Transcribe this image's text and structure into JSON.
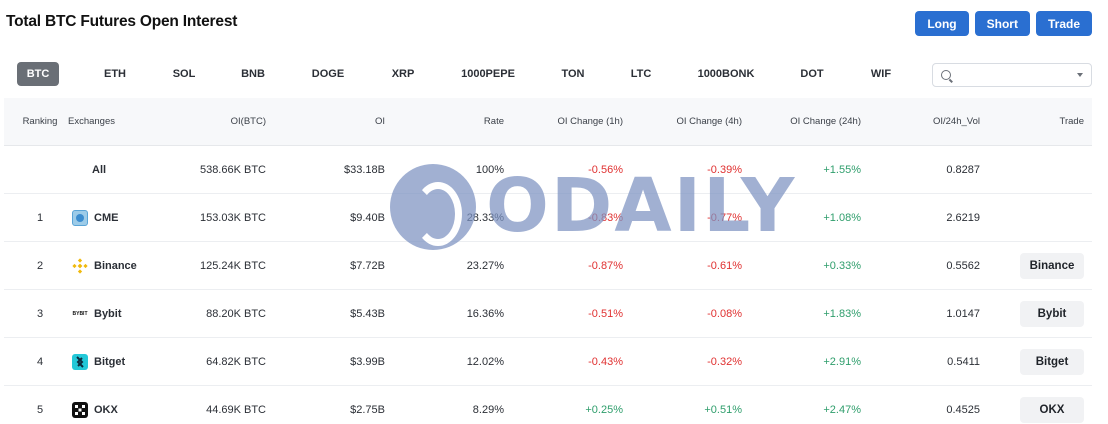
{
  "page": {
    "title": "Total BTC Futures Open Interest"
  },
  "actions": {
    "long_label": "Long",
    "short_label": "Short",
    "trade_label": "Trade"
  },
  "coins": [
    "BTC",
    "ETH",
    "SOL",
    "BNB",
    "DOGE",
    "XRP",
    "1000PEPE",
    "TON",
    "LTC",
    "1000BONK",
    "DOT",
    "WIF"
  ],
  "selected_coin": "BTC",
  "search": {
    "value": "",
    "placeholder": ""
  },
  "table": {
    "headers": {
      "ranking": "Ranking",
      "exchanges": "Exchanges",
      "oi_btc": "OI(BTC)",
      "oi": "OI",
      "rate": "Rate",
      "oi_change_1h": "OI Change (1h)",
      "oi_change_4h": "OI Change (4h)",
      "oi_change_24h": "OI Change (24h)",
      "oi_24h_vol": "OI/24h_Vol",
      "trade": "Trade"
    },
    "rows": [
      {
        "rank": "",
        "exchange": "All",
        "icon": "",
        "oi_btc": "538.66K BTC",
        "oi": "$33.18B",
        "rate": "100%",
        "ch1h": "-0.56%",
        "ch4h": "-0.39%",
        "ch24h": "+1.55%",
        "vol": "0.8287",
        "trade": ""
      },
      {
        "rank": "1",
        "exchange": "CME",
        "icon": "cme-logo-icon",
        "oi_btc": "153.03K BTC",
        "oi": "$9.40B",
        "rate": "28.33%",
        "ch1h": "-0.83%",
        "ch4h": "-0.77%",
        "ch24h": "+1.08%",
        "vol": "2.6219",
        "trade": ""
      },
      {
        "rank": "2",
        "exchange": "Binance",
        "icon": "binance-logo-icon",
        "oi_btc": "125.24K BTC",
        "oi": "$7.72B",
        "rate": "23.27%",
        "ch1h": "-0.87%",
        "ch4h": "-0.61%",
        "ch24h": "+0.33%",
        "vol": "0.5562",
        "trade": "Binance"
      },
      {
        "rank": "3",
        "exchange": "Bybit",
        "icon": "bybit-logo-icon",
        "logo_text": "BYBIT",
        "oi_btc": "88.20K BTC",
        "oi": "$5.43B",
        "rate": "16.36%",
        "ch1h": "-0.51%",
        "ch4h": "-0.08%",
        "ch24h": "+1.83%",
        "vol": "1.0147",
        "trade": "Bybit"
      },
      {
        "rank": "4",
        "exchange": "Bitget",
        "icon": "bitget-logo-icon",
        "oi_btc": "64.82K BTC",
        "oi": "$3.99B",
        "rate": "12.02%",
        "ch1h": "-0.43%",
        "ch4h": "-0.32%",
        "ch24h": "+2.91%",
        "vol": "0.5411",
        "trade": "Bitget"
      },
      {
        "rank": "5",
        "exchange": "OKX",
        "icon": "okx-logo-icon",
        "oi_btc": "44.69K BTC",
        "oi": "$2.75B",
        "rate": "8.29%",
        "ch1h": "+0.25%",
        "ch4h": "+0.51%",
        "ch24h": "+2.47%",
        "vol": "0.4525",
        "trade": "OKX"
      }
    ]
  },
  "watermark": {
    "text": "ODAILY"
  },
  "colors": {
    "accent": "#2a6fd1",
    "negative": "#e03131",
    "positive": "#2f9e6c",
    "tab_active": "#6a6f76"
  }
}
